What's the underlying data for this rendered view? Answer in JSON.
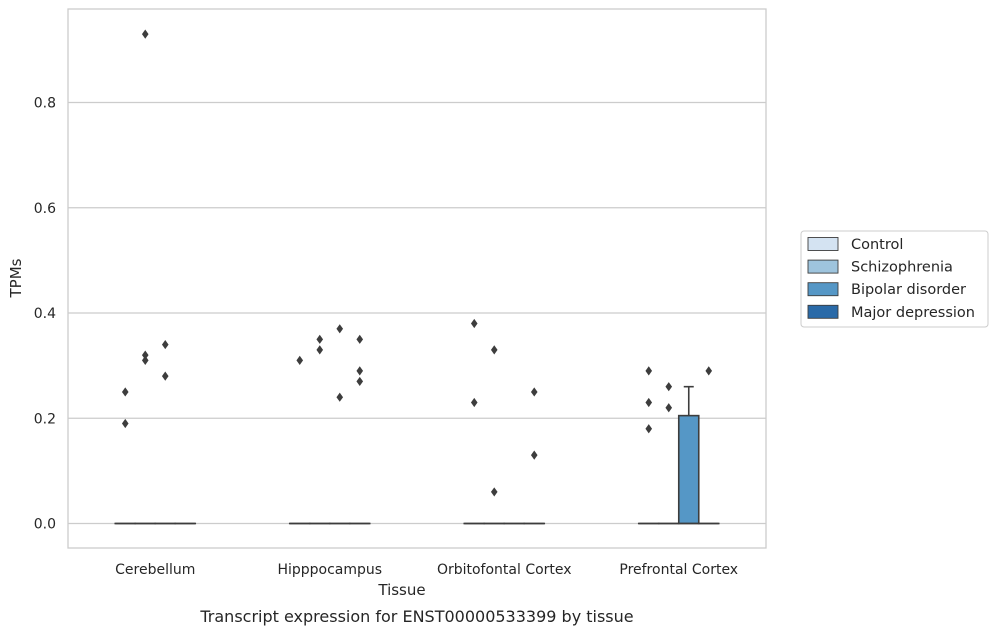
{
  "caption": "Transcript expression for ENST00000533399 by tissue",
  "chart_data": {
    "type": "box",
    "xlabel": "Tissue",
    "ylabel": "TPMs",
    "ylim": [
      -0.045,
      0.98
    ],
    "yticks": [
      0.0,
      0.2,
      0.4,
      0.6,
      0.8
    ],
    "ytick_labels": [
      "0.0",
      "0.2",
      "0.4",
      "0.6",
      "0.8"
    ],
    "grid": "horizontal",
    "legend_position": "right",
    "categories": [
      "Cerebellum",
      "Hipppocampus",
      "Orbitofontal Cortex",
      "Prefrontal Cortex"
    ],
    "series": [
      {
        "name": "Control",
        "color": "#d4e3f2",
        "boxes": [
          {
            "q1": 0,
            "median": 0,
            "q3": 0,
            "whislo": 0,
            "whishi": 0,
            "outliers": [
              0.19,
              0.25
            ]
          },
          {
            "q1": 0,
            "median": 0,
            "q3": 0,
            "whislo": 0,
            "whishi": 0,
            "outliers": [
              0.31
            ]
          },
          {
            "q1": 0,
            "median": 0,
            "q3": 0,
            "whislo": 0,
            "whishi": 0,
            "outliers": [
              0.23,
              0.38
            ]
          },
          {
            "q1": 0,
            "median": 0,
            "q3": 0,
            "whislo": 0,
            "whishi": 0,
            "outliers": [
              0.18,
              0.23,
              0.29
            ]
          }
        ]
      },
      {
        "name": "Schizophrenia",
        "color": "#9ec4dd",
        "boxes": [
          {
            "q1": 0,
            "median": 0,
            "q3": 0,
            "whislo": 0,
            "whishi": 0,
            "outliers": [
              0.31,
              0.32,
              0.93
            ]
          },
          {
            "q1": 0,
            "median": 0,
            "q3": 0,
            "whislo": 0,
            "whishi": 0,
            "outliers": [
              0.33,
              0.35
            ]
          },
          {
            "q1": 0,
            "median": 0,
            "q3": 0,
            "whislo": 0,
            "whishi": 0,
            "outliers": [
              0.06,
              0.33
            ]
          },
          {
            "q1": 0,
            "median": 0,
            "q3": 0,
            "whislo": 0,
            "whishi": 0,
            "outliers": [
              0.22,
              0.26
            ]
          }
        ]
      },
      {
        "name": "Bipolar disorder",
        "color": "#5597c6",
        "boxes": [
          {
            "q1": 0,
            "median": 0,
            "q3": 0,
            "whislo": 0,
            "whishi": 0,
            "outliers": [
              0.28,
              0.34
            ]
          },
          {
            "q1": 0,
            "median": 0,
            "q3": 0,
            "whislo": 0,
            "whishi": 0,
            "outliers": [
              0.24,
              0.37
            ]
          },
          {
            "q1": 0,
            "median": 0,
            "q3": 0,
            "whislo": 0,
            "whishi": 0,
            "outliers": []
          },
          {
            "q1": 0,
            "median": 0,
            "q3": 0.205,
            "whislo": 0,
            "whishi": 0.26,
            "outliers": []
          }
        ]
      },
      {
        "name": "Major depression",
        "color": "#2a6aa8",
        "boxes": [
          {
            "q1": 0,
            "median": 0,
            "q3": 0,
            "whislo": 0,
            "whishi": 0,
            "outliers": []
          },
          {
            "q1": 0,
            "median": 0,
            "q3": 0,
            "whislo": 0,
            "whishi": 0,
            "outliers": [
              0.27,
              0.29,
              0.35
            ]
          },
          {
            "q1": 0,
            "median": 0,
            "q3": 0,
            "whislo": 0,
            "whishi": 0,
            "outliers": [
              0.13,
              0.25
            ]
          },
          {
            "q1": 0,
            "median": 0,
            "q3": 0,
            "whislo": 0,
            "whishi": 0,
            "outliers": [
              0.29
            ]
          }
        ]
      }
    ]
  }
}
